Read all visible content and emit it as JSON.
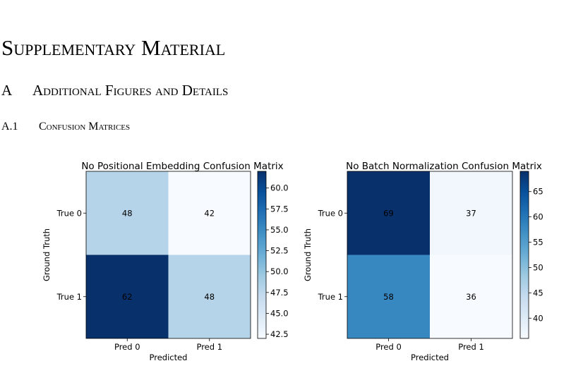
{
  "section_title": "Supplementary Material",
  "subsection": {
    "number": "A",
    "title": "Additional Figures and Details"
  },
  "subsubsection": {
    "number": "A.1",
    "title": "Confusion Matrices"
  },
  "chart_data": [
    {
      "type": "heatmap",
      "title": "No Positional Embedding Confusion Matrix",
      "x_categories": [
        "Pred 0",
        "Pred 1"
      ],
      "y_categories": [
        "True 0",
        "True 1"
      ],
      "values": [
        [
          48,
          42
        ],
        [
          62,
          48
        ]
      ],
      "xlabel": "Predicted",
      "ylabel": "Ground Truth",
      "colormap": "Blues",
      "clim": [
        42,
        62
      ],
      "cticks": [
        42.5,
        {
          "value": 45,
          "label": "45.0"
        },
        47.5,
        {
          "value": 50,
          "label": "50.0"
        },
        52.5,
        {
          "value": 55,
          "label": "55.0"
        },
        57.5,
        {
          "value": 60,
          "label": "60.0"
        }
      ]
    },
    {
      "type": "heatmap",
      "title": "No Batch Normalization Confusion Matrix",
      "x_categories": [
        "Pred 0",
        "Pred 1"
      ],
      "y_categories": [
        "True 0",
        "True 1"
      ],
      "values": [
        [
          69,
          37
        ],
        [
          58,
          36
        ]
      ],
      "xlabel": "Predicted",
      "ylabel": "Ground Truth",
      "colormap": "Blues",
      "clim": [
        36,
        69
      ],
      "cticks": [
        40,
        45,
        50,
        55,
        60,
        65
      ]
    }
  ]
}
